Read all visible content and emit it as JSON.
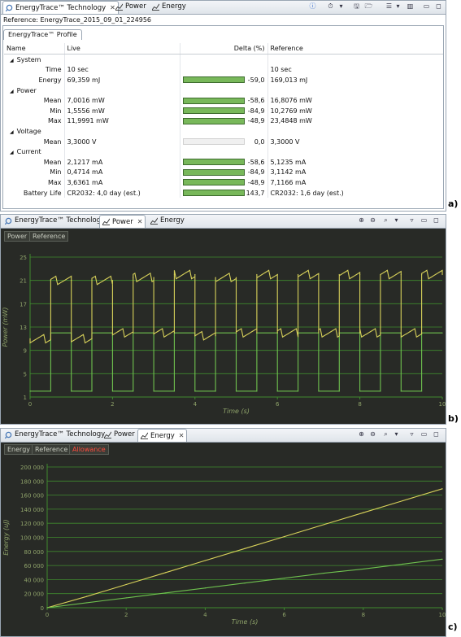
{
  "panel_a": {
    "tabs": [
      "EnergyTrace™ Technology",
      "Power",
      "Energy"
    ],
    "reference_line": "Reference: EnergyTrace_2015_09_01_224956",
    "profile_tab": "EnergyTrace™ Profile",
    "columns": [
      "Name",
      "Live",
      "Delta (%)",
      "Reference"
    ],
    "rows": [
      {
        "name": "System",
        "group": true
      },
      {
        "name": "Time",
        "live": "10 sec",
        "delta": "",
        "ref": "10 sec",
        "bar": 0
      },
      {
        "name": "Energy",
        "live": "69,359 mJ",
        "delta": "-59,0",
        "ref": "169,013 mJ",
        "bar": 1
      },
      {
        "name": "Power",
        "group": true
      },
      {
        "name": "Mean",
        "live": "7,0016 mW",
        "delta": "-58,6",
        "ref": "16,8076 mW",
        "bar": 1
      },
      {
        "name": "Min",
        "live": "1,5556 mW",
        "delta": "-84,9",
        "ref": "10,2769 mW",
        "bar": 1
      },
      {
        "name": "Max",
        "live": "11,9991 mW",
        "delta": "-48,9",
        "ref": "23,4848 mW",
        "bar": 1
      },
      {
        "name": "Voltage",
        "group": true
      },
      {
        "name": "Mean",
        "live": "3,3000 V",
        "delta": "0,0",
        "ref": "3,3000 V",
        "bar": 0.02
      },
      {
        "name": "Current",
        "group": true
      },
      {
        "name": "Mean",
        "live": "2,1217 mA",
        "delta": "-58,6",
        "ref": "5,1235 mA",
        "bar": 1
      },
      {
        "name": "Min",
        "live": "0,4714 mA",
        "delta": "-84,9",
        "ref": "3,1142 mA",
        "bar": 1
      },
      {
        "name": "Max",
        "live": "3,6361 mA",
        "delta": "-48,9",
        "ref": "7,1166 mA",
        "bar": 1
      },
      {
        "name": "Battery Life",
        "live": "CR2032: 4,0 day (est.)",
        "delta": "143,7",
        "ref": "CR2032: 1,6 day (est.)",
        "bar": 1
      }
    ],
    "label": "a)"
  },
  "panel_b": {
    "tabs": [
      "EnergyTrace™ Technology",
      "Power",
      "Energy"
    ],
    "legend": [
      "Power",
      "Reference"
    ],
    "label": "b)"
  },
  "panel_c": {
    "tabs": [
      "EnergyTrace™ Technology",
      "Power",
      "Energy"
    ],
    "legend": [
      "Energy",
      "Reference",
      "Allowance"
    ],
    "label": "c)"
  },
  "colors": {
    "live_line": "#6fc24f",
    "reference_line": "#d8d25a",
    "grid": "#3f8a2e",
    "chart_bg": "#282a26",
    "allowance": "#ff3b30"
  },
  "chart_data": [
    {
      "type": "line",
      "xlabel": "Time (s)",
      "ylabel": "Power (mW)",
      "xlim": [
        0,
        10
      ],
      "ylim": [
        1,
        25
      ],
      "x_ticks": [
        "0",
        "2",
        "4",
        "6",
        "8",
        "10"
      ],
      "y_ticks": [
        "1",
        "5",
        "9",
        "13",
        "17",
        "21",
        "25"
      ],
      "grid": true,
      "series": [
        {
          "name": "Power",
          "x": [
            0,
            0.5,
            0.5,
            1.0,
            1.0,
            1.5,
            1.5,
            2.0,
            2.0,
            2.5,
            2.5,
            3.0,
            3.0,
            3.5,
            3.5,
            4.0,
            4.0,
            4.5,
            4.5,
            5.0,
            5.0,
            5.5,
            5.5,
            6.0,
            6.0,
            6.5,
            6.5,
            7.0,
            7.0,
            7.5,
            7.5,
            8.0,
            8.0,
            8.5,
            8.5,
            9.0,
            9.0,
            9.5,
            9.5,
            10.0
          ],
          "y": [
            2,
            2,
            12,
            12,
            2,
            2,
            12,
            12,
            2,
            2,
            12,
            12,
            2,
            2,
            12,
            12,
            2,
            2,
            12,
            12,
            2,
            2,
            12,
            12,
            2,
            2,
            12,
            12,
            2,
            2,
            12,
            12,
            2,
            2,
            12,
            12,
            2,
            2,
            12,
            12
          ]
        },
        {
          "name": "Reference",
          "x": [
            0,
            0.5,
            0.5,
            1.0,
            1.0,
            1.5,
            1.5,
            2.0,
            2.0,
            2.5,
            2.5,
            3.0,
            3.0,
            3.5,
            3.5,
            4.0,
            4.0,
            4.5,
            4.5,
            5.0,
            5.0,
            5.5,
            5.5,
            6.0,
            6.0,
            6.5,
            6.5,
            7.0,
            7.0,
            7.5,
            7.5,
            8.0,
            8.0,
            8.5,
            8.5,
            9.0,
            9.0,
            9.5,
            9.5,
            10.0
          ],
          "y": [
            11,
            11,
            21,
            21,
            11,
            11,
            21,
            21,
            12,
            12,
            21.5,
            21.5,
            12,
            12,
            22,
            22,
            11.5,
            11.5,
            21.5,
            21.5,
            12,
            12,
            22,
            22,
            12,
            12,
            22,
            22,
            12,
            12,
            22,
            22,
            12,
            12,
            22,
            22,
            12,
            12,
            22,
            22
          ]
        }
      ]
    },
    {
      "type": "line",
      "xlabel": "Time (s)",
      "ylabel": "Energy (uJ)",
      "xlim": [
        0,
        10
      ],
      "ylim": [
        0,
        200000
      ],
      "x_ticks": [
        "0",
        "2",
        "4",
        "6",
        "8",
        "10"
      ],
      "y_ticks": [
        "0",
        "20 000",
        "40 000",
        "60 000",
        "80 000",
        "100 000",
        "120 000",
        "140 000",
        "160 000",
        "180 000",
        "200 000"
      ],
      "grid": true,
      "series": [
        {
          "name": "Reference",
          "x": [
            0,
            1,
            2,
            3,
            4,
            5,
            6,
            7,
            8,
            9,
            10
          ],
          "y": [
            0,
            16000,
            33000,
            50000,
            67000,
            84000,
            101000,
            118000,
            135000,
            152000,
            169000
          ]
        },
        {
          "name": "Energy",
          "x": [
            0,
            1,
            2,
            3,
            4,
            5,
            6,
            7,
            8,
            9,
            10
          ],
          "y": [
            0,
            7000,
            14000,
            21000,
            28000,
            35000,
            42000,
            49000,
            55000,
            62000,
            69000
          ]
        }
      ]
    }
  ]
}
